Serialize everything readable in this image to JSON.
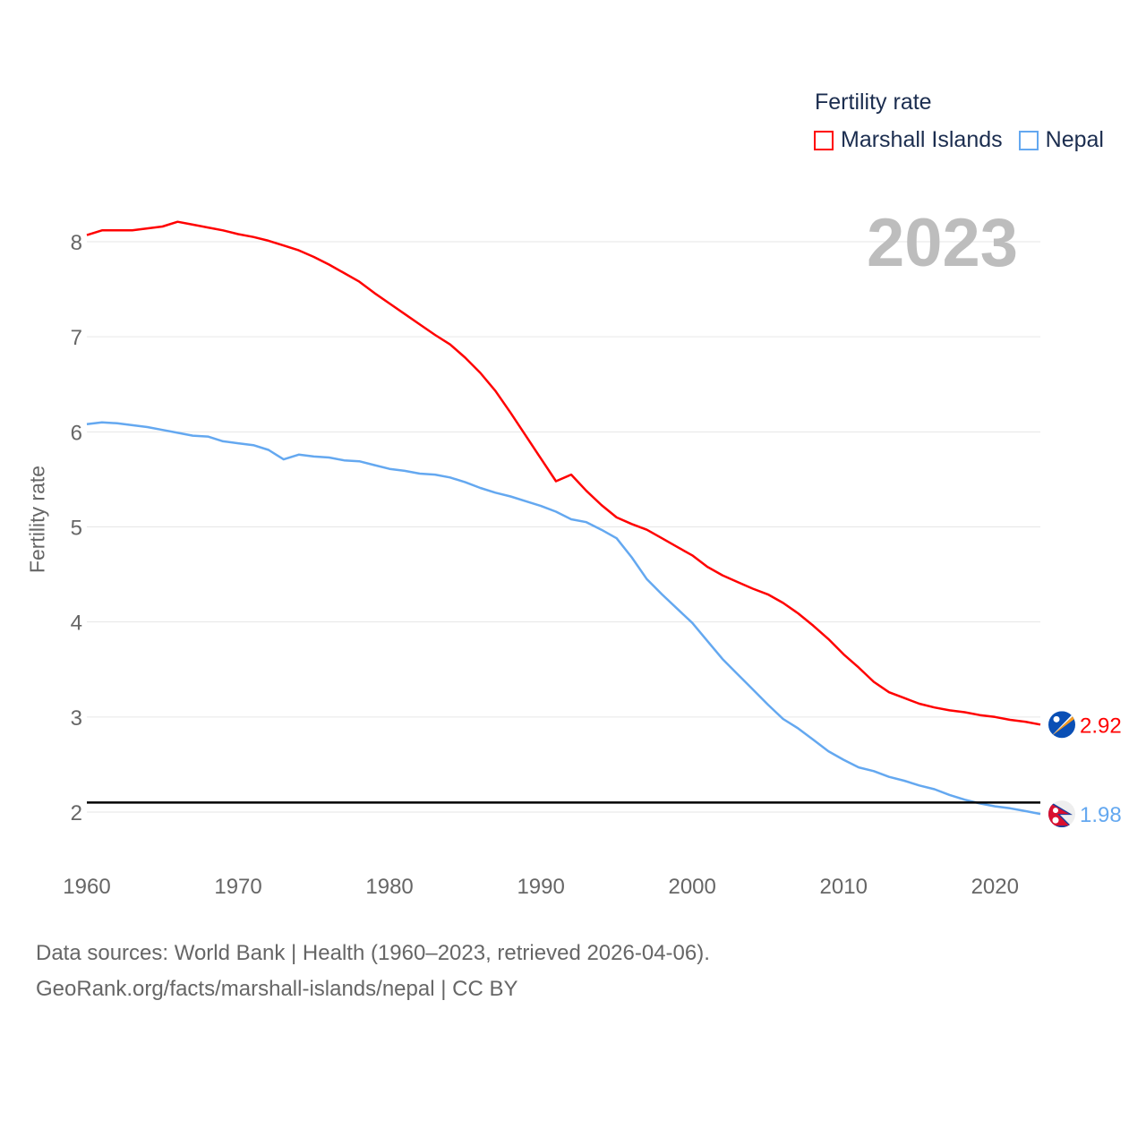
{
  "chart_data": {
    "type": "line",
    "title": "Fertility rate",
    "ylabel": "Fertility rate",
    "xlabel": "",
    "ylim": [
      2,
      8
    ],
    "xlim": [
      1960,
      2023
    ],
    "yticks": [
      2,
      3,
      4,
      5,
      6,
      7,
      8
    ],
    "xticks": [
      1960,
      1970,
      1980,
      1990,
      2000,
      2010,
      2020
    ],
    "grid": true,
    "legend_position": "top-right",
    "year_label": "2023",
    "reference_line": 2.1,
    "x": [
      1960,
      1961,
      1962,
      1963,
      1964,
      1965,
      1966,
      1967,
      1968,
      1969,
      1970,
      1971,
      1972,
      1973,
      1974,
      1975,
      1976,
      1977,
      1978,
      1979,
      1980,
      1981,
      1982,
      1983,
      1984,
      1985,
      1986,
      1987,
      1988,
      1989,
      1990,
      1991,
      1992,
      1993,
      1994,
      1995,
      1996,
      1997,
      1998,
      1999,
      2000,
      2001,
      2002,
      2003,
      2004,
      2005,
      2006,
      2007,
      2008,
      2009,
      2010,
      2011,
      2012,
      2013,
      2014,
      2015,
      2016,
      2017,
      2018,
      2019,
      2020,
      2021,
      2022,
      2023
    ],
    "series": [
      {
        "name": "Marshall Islands",
        "color": "#ff0000",
        "end_label": "2.92",
        "values": [
          8.07,
          8.12,
          8.12,
          8.12,
          8.14,
          8.16,
          8.21,
          8.18,
          8.15,
          8.12,
          8.08,
          8.05,
          8.01,
          7.96,
          7.91,
          7.84,
          7.76,
          7.67,
          7.58,
          7.46,
          7.35,
          7.24,
          7.13,
          7.02,
          6.92,
          6.78,
          6.62,
          6.43,
          6.2,
          5.96,
          5.72,
          5.48,
          5.55,
          5.38,
          5.23,
          5.1,
          5.03,
          4.97,
          4.88,
          4.79,
          4.7,
          4.58,
          4.49,
          4.42,
          4.35,
          4.29,
          4.2,
          4.09,
          3.96,
          3.82,
          3.66,
          3.52,
          3.37,
          3.26,
          3.2,
          3.14,
          3.1,
          3.07,
          3.05,
          3.02,
          3.0,
          2.97,
          2.95,
          2.92
        ]
      },
      {
        "name": "Nepal",
        "color": "#64a8f0",
        "end_label": "1.98",
        "values": [
          6.08,
          6.1,
          6.09,
          6.07,
          6.05,
          6.02,
          5.99,
          5.96,
          5.95,
          5.9,
          5.88,
          5.86,
          5.81,
          5.71,
          5.76,
          5.74,
          5.73,
          5.7,
          5.69,
          5.65,
          5.61,
          5.59,
          5.56,
          5.55,
          5.52,
          5.47,
          5.41,
          5.36,
          5.32,
          5.27,
          5.22,
          5.16,
          5.08,
          5.05,
          4.97,
          4.88,
          4.68,
          4.45,
          4.29,
          4.14,
          3.99,
          3.8,
          3.61,
          3.45,
          3.29,
          3.13,
          2.98,
          2.88,
          2.76,
          2.64,
          2.55,
          2.47,
          2.43,
          2.37,
          2.33,
          2.28,
          2.24,
          2.18,
          2.13,
          2.09,
          2.06,
          2.04,
          2.01,
          1.98
        ]
      }
    ]
  },
  "legend": {
    "title": "Fertility rate",
    "items": [
      "Marshall Islands",
      "Nepal"
    ]
  },
  "source": {
    "line1": "Data sources: World Bank | Health (1960–2023, retrieved 2026-04-06).",
    "line2": "GeoRank.org/facts/marshall-islands/nepal | CC BY"
  }
}
